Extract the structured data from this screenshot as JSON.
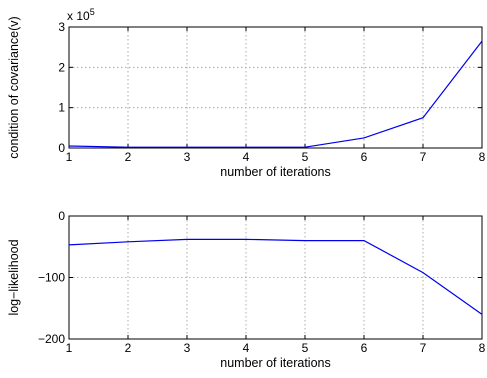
{
  "line_color": "#0000ee",
  "chart_data": [
    {
      "type": "line",
      "xlabel": "number of iterations",
      "ylabel": "condition of covariance(v)",
      "multiplier_base": "x 10",
      "multiplier_exp": "5",
      "xlim": [
        1,
        8
      ],
      "ylim": [
        0,
        3
      ],
      "xticks": [
        1,
        2,
        3,
        4,
        5,
        6,
        7,
        8
      ],
      "yticks": [
        0,
        1,
        2,
        3
      ],
      "grid": true,
      "x": [
        1,
        2,
        3,
        4,
        5,
        6,
        7,
        8
      ],
      "y": [
        0.05,
        0.02,
        0.02,
        0.02,
        0.02,
        0.25,
        0.75,
        2.65
      ]
    },
    {
      "type": "line",
      "xlabel": "number of iterations",
      "ylabel": "log−likelihood",
      "xlim": [
        1,
        8
      ],
      "ylim": [
        -200,
        0
      ],
      "xticks": [
        1,
        2,
        3,
        4,
        5,
        6,
        7,
        8
      ],
      "yticks": [
        0,
        -100,
        -200
      ],
      "ytick_labels": [
        "0",
        "−100",
        "−200"
      ],
      "grid": true,
      "x": [
        1,
        2,
        3,
        4,
        5,
        6,
        7,
        8
      ],
      "y": [
        -47,
        -42,
        -38,
        -38,
        -40,
        -40,
        -92,
        -160
      ]
    }
  ]
}
